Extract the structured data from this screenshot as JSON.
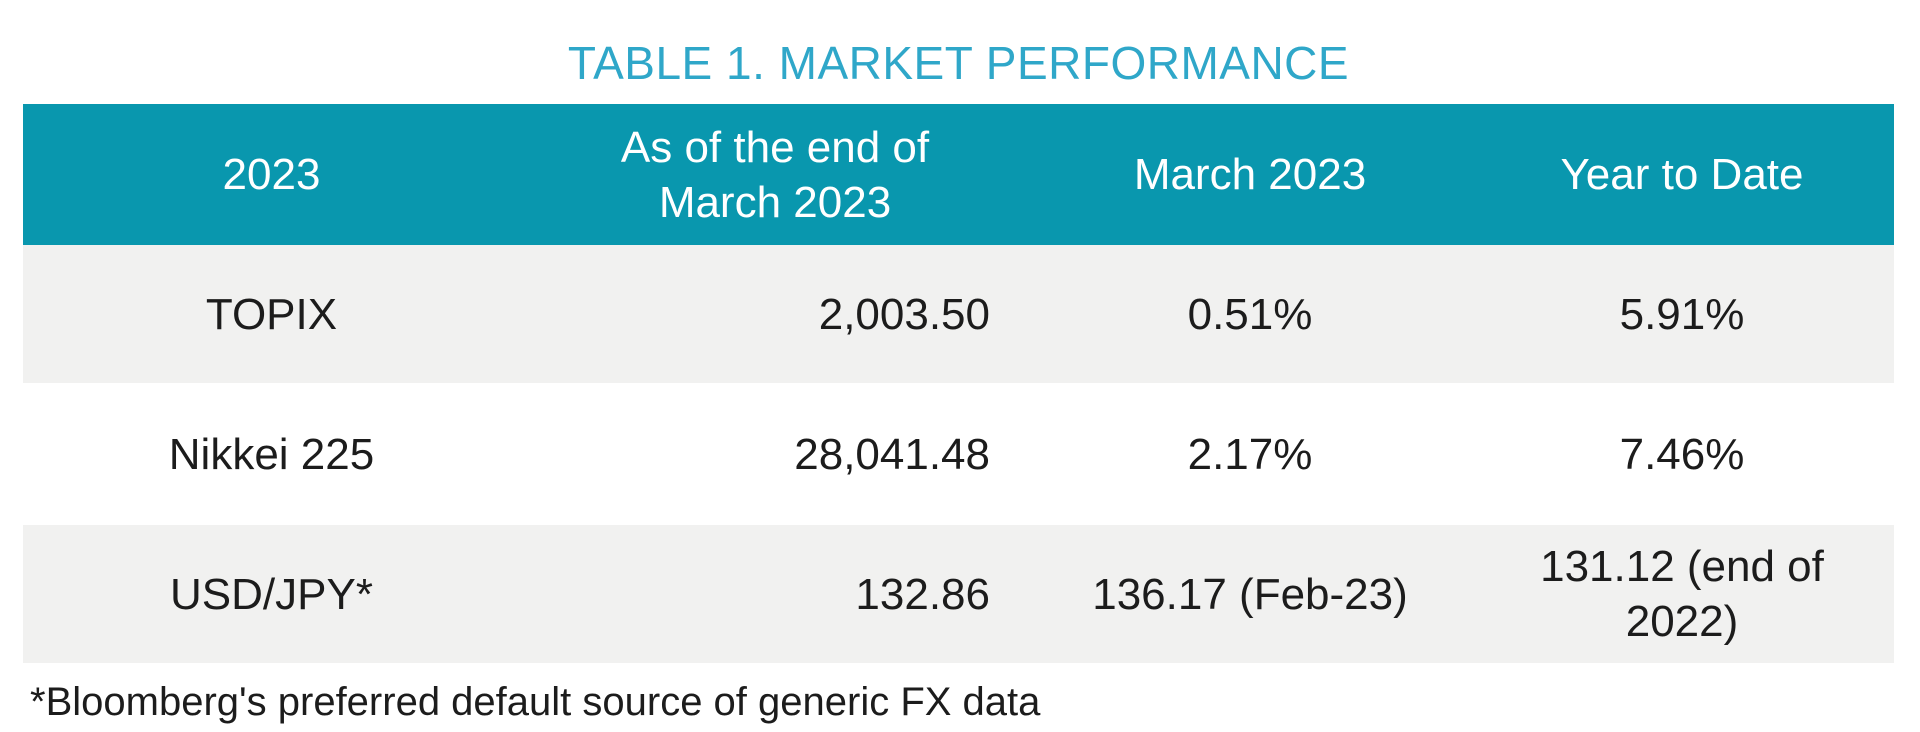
{
  "title": "TABLE 1. MARKET PERFORMANCE",
  "colors": {
    "header_background": "#0997AE",
    "title_text": "#2FA7C9",
    "shaded_row_background": "#F1F1F0",
    "body_text": "#1C1C1C",
    "header_text": "#FFFFFF"
  },
  "table": {
    "columns": [
      {
        "label": "2023"
      },
      {
        "label": "As of the end of March 2023"
      },
      {
        "label": "March 2023"
      },
      {
        "label": "Year to Date"
      }
    ],
    "rows": [
      {
        "cells": [
          "TOPIX",
          "2,003.50",
          "0.51%",
          "5.91%"
        ]
      },
      {
        "cells": [
          "Nikkei 225",
          "28,041.48",
          "2.17%",
          "7.46%"
        ]
      },
      {
        "cells": [
          "USD/JPY*",
          "132.86",
          "136.17 (Feb-23)",
          "131.12 (end of 2022)"
        ]
      }
    ]
  },
  "footnote": "*Bloomberg's preferred default source of generic FX data"
}
